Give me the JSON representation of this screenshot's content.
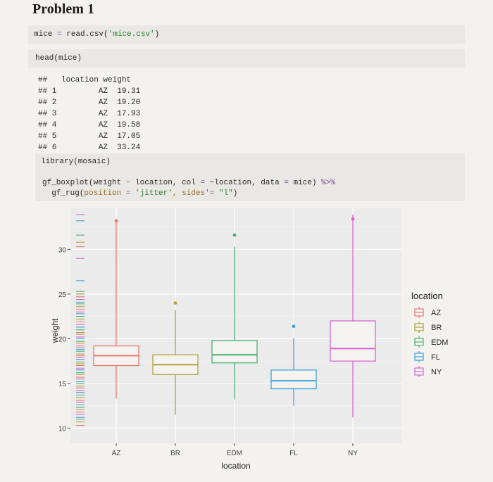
{
  "title": "Problem 1",
  "code": {
    "line1": {
      "var": "mice",
      "op": " = ",
      "fn": "read.csv(",
      "str": "'mice.csv'",
      "end": ")"
    },
    "line2": "head(mice)",
    "library": "library(mosaic)",
    "plot_line1": {
      "a": "gf_boxplot(weight ",
      "tilde": "~",
      "b": " location, col ",
      "eq": "=",
      "c": " ~location, data ",
      "eq2": "=",
      "d": " mice) ",
      "pipe": "%>%"
    },
    "plot_line2": {
      "a": "  gf_rug(",
      "b": "position ",
      "eq": "=",
      "str1": " 'jitter'",
      "c": ", sides",
      "eq2": "'=",
      "str2": " \"l\"",
      "d": ")"
    }
  },
  "head_output": {
    "header": "##   location weight",
    "rows": [
      "## 1         AZ  19.31",
      "## 2         AZ  19.20",
      "## 3         AZ  17.93",
      "## 4         AZ  19.58",
      "## 5         AZ  17.05",
      "## 6         AZ  33.24"
    ]
  },
  "chart_data": {
    "type": "boxplot",
    "xlabel": "location",
    "ylabel": "weight",
    "ylim": [
      8.3,
      34.6
    ],
    "yticks": [
      10,
      15,
      20,
      25,
      30
    ],
    "categories": [
      "AZ",
      "BR",
      "EDM",
      "FL",
      "NY"
    ],
    "colors": {
      "AZ": "#e7796f",
      "BR": "#b3a13a",
      "EDM": "#4caf72",
      "FL": "#3fa2d8",
      "NY": "#d469d0"
    },
    "boxes": [
      {
        "location": "AZ",
        "whisker_low": 13.3,
        "q1": 17.0,
        "median": 18.1,
        "q3": 19.2,
        "whisker_high": 33.2,
        "outliers": [
          33.2
        ]
      },
      {
        "location": "BR",
        "whisker_low": 11.5,
        "q1": 16.0,
        "median": 17.1,
        "q3": 18.2,
        "whisker_high": 23.2,
        "outliers": [
          24.0
        ]
      },
      {
        "location": "EDM",
        "whisker_low": 13.2,
        "q1": 17.3,
        "median": 18.2,
        "q3": 19.8,
        "whisker_high": 30.3,
        "outliers": [
          31.6
        ]
      },
      {
        "location": "FL",
        "whisker_low": 12.5,
        "q1": 14.4,
        "median": 15.3,
        "q3": 16.5,
        "whisker_high": 20.1,
        "outliers": [
          21.4
        ]
      },
      {
        "location": "NY",
        "whisker_low": 11.2,
        "q1": 17.5,
        "median": 18.9,
        "q3": 22.0,
        "whisker_high": 33.9,
        "outliers": [
          33.4
        ]
      }
    ],
    "rug_y": [
      10.3,
      10.7,
      11.0,
      11.2,
      11.5,
      11.8,
      12.1,
      12.3,
      12.6,
      12.9,
      13.1,
      13.4,
      13.7,
      14.0,
      14.2,
      14.5,
      14.7,
      15.0,
      15.2,
      15.5,
      15.7,
      16.0,
      16.2,
      16.5,
      16.7,
      17.0,
      17.2,
      17.4,
      17.7,
      17.9,
      18.1,
      18.3,
      18.6,
      18.8,
      19.0,
      19.2,
      19.5,
      19.7,
      20.0,
      20.2,
      20.5,
      20.7,
      21.0,
      21.3,
      21.6,
      21.9,
      22.2,
      22.5,
      22.8,
      23.0,
      23.3,
      23.6,
      23.9,
      24.1,
      24.4,
      24.7,
      25.0,
      25.3,
      26.5,
      29.0,
      30.3,
      30.8,
      31.6,
      33.2,
      33.9
    ],
    "legend": {
      "title": "location",
      "items": [
        "AZ",
        "BR",
        "EDM",
        "FL",
        "NY"
      ],
      "position": "right"
    }
  }
}
